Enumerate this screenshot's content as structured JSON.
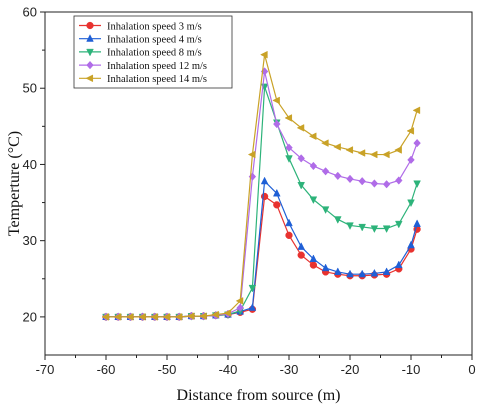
{
  "chart_data": {
    "type": "line",
    "xlabel": "Distance from source (m)",
    "ylabel": "Temperture (°C)",
    "xlim": [
      -70,
      0
    ],
    "ylim": [
      15,
      60
    ],
    "xticks": [
      -70,
      -60,
      -50,
      -40,
      -30,
      -20,
      -10,
      0
    ],
    "yticks": [
      20,
      30,
      40,
      50,
      60
    ],
    "legend_position": "top-left",
    "grid": false,
    "x": [
      -60,
      -58,
      -56,
      -54,
      -52,
      -50,
      -48,
      -46,
      -44,
      -42,
      -40,
      -38,
      -36,
      -34,
      -32,
      -30,
      -28,
      -26,
      -24,
      -22,
      -20,
      -18,
      -16,
      -14,
      -12,
      -10,
      -9
    ],
    "series": [
      {
        "name": "Inhalation speed 3 m/s",
        "color": "#e8322f",
        "marker": "circle",
        "values": [
          20,
          20,
          20,
          20,
          20,
          20,
          20,
          20.1,
          20.1,
          20.2,
          20.3,
          20.6,
          21,
          35.8,
          34.7,
          30.7,
          28.1,
          26.8,
          25.9,
          25.6,
          25.4,
          25.4,
          25.5,
          25.6,
          26.3,
          28.9,
          31.5
        ]
      },
      {
        "name": "Inhalation speed 4 m/s",
        "color": "#1f5fd6",
        "marker": "triangle-up",
        "values": [
          20,
          20,
          20,
          20,
          20,
          20,
          20,
          20.1,
          20.1,
          20.2,
          20.3,
          20.7,
          21.2,
          37.8,
          36.2,
          32.3,
          29.2,
          27.6,
          26.4,
          25.9,
          25.6,
          25.6,
          25.7,
          25.9,
          26.8,
          29.4,
          32.2
        ]
      },
      {
        "name": "Inhalation speed 8 m/s",
        "color": "#2db37a",
        "marker": "triangle-down",
        "values": [
          20,
          20,
          20,
          20,
          20,
          20,
          20,
          20.1,
          20.1,
          20.2,
          20.3,
          20.8,
          23.8,
          50.2,
          45.5,
          40.8,
          37.3,
          35.4,
          34.1,
          32.8,
          32.0,
          31.8,
          31.6,
          31.6,
          32.2,
          35.0,
          37.5
        ]
      },
      {
        "name": "Inhalation speed 12 m/s",
        "color": "#b06ce8",
        "marker": "diamond",
        "values": [
          20,
          20,
          20,
          20,
          20,
          20,
          20,
          20.1,
          20.1,
          20.2,
          20.4,
          21.2,
          38.4,
          52.2,
          45.3,
          42.2,
          40.8,
          39.8,
          39.1,
          38.5,
          38.1,
          37.8,
          37.5,
          37.4,
          37.9,
          40.6,
          42.8
        ]
      },
      {
        "name": "Inhalation speed 14 m/s",
        "color": "#c9a227",
        "marker": "triangle-left",
        "values": [
          20,
          20,
          20,
          20,
          20,
          20,
          20,
          20.1,
          20.1,
          20.3,
          20.5,
          22.1,
          41.3,
          54.4,
          48.4,
          46.1,
          44.8,
          43.7,
          42.8,
          42.3,
          41.9,
          41.5,
          41.3,
          41.3,
          41.9,
          44.4,
          47.1
        ]
      }
    ]
  }
}
